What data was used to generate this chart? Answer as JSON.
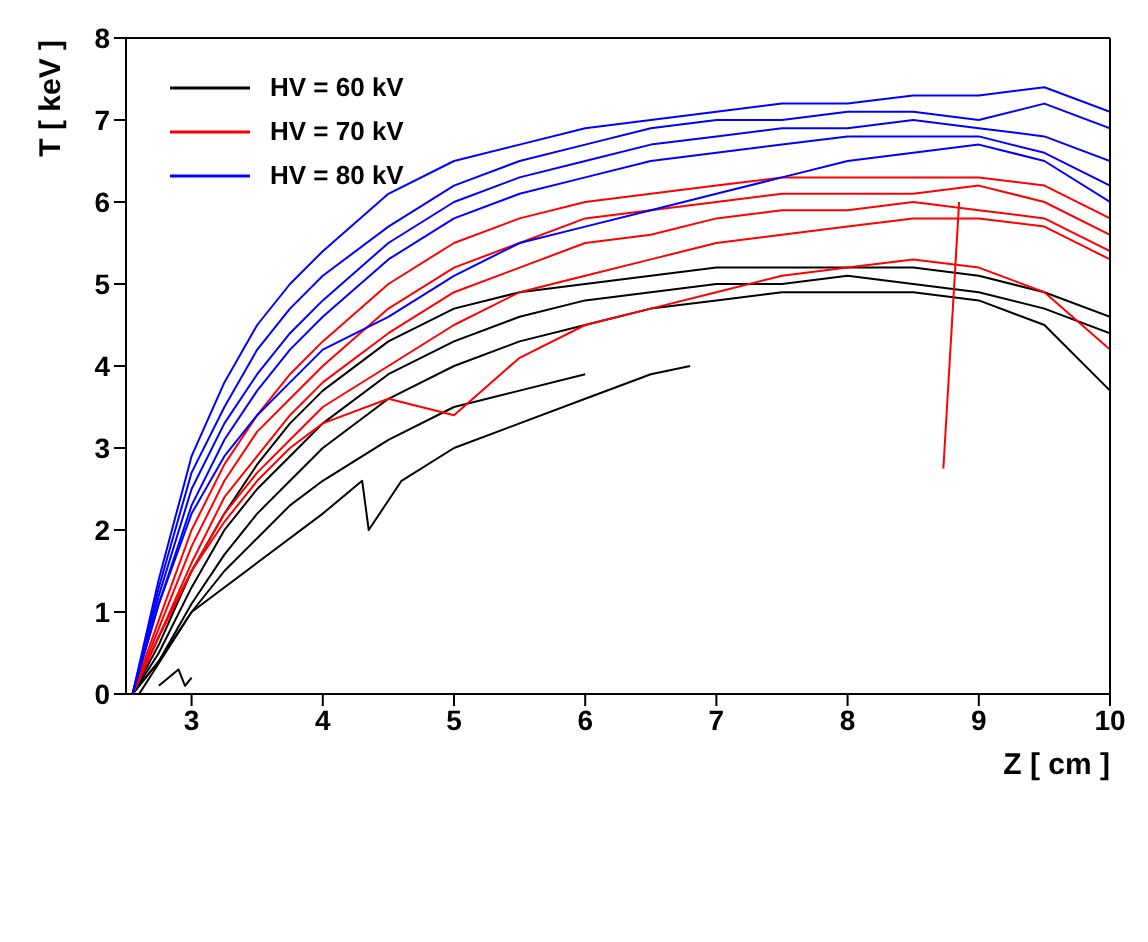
{
  "chart_data": {
    "type": "line",
    "xlabel": "Z  [ cm ]",
    "ylabel": "T  [ keV ]",
    "xlim": [
      2.5,
      10
    ],
    "xticks": [
      3,
      4,
      5,
      6,
      7,
      8,
      9,
      10
    ],
    "ylim": [
      0,
      8
    ],
    "yticks": [
      0,
      1,
      2,
      3,
      4,
      5,
      6,
      7,
      8
    ],
    "grid": false,
    "legend": "top left",
    "marker": "none",
    "line_style": "solid",
    "x": [
      2.55,
      2.75,
      3,
      3.25,
      3.5,
      3.75,
      4,
      4.5,
      5,
      5.5,
      6,
      6.5,
      7,
      7.5,
      8,
      8.5,
      9,
      9.5,
      10
    ],
    "series": [
      {
        "name": "HV = 60 kV",
        "color": "#000000",
        "values": [
          0,
          0.6,
          1.5,
          2.2,
          2.8,
          3.3,
          3.7,
          4.3,
          4.7,
          4.9,
          5.0,
          5.1,
          5.2,
          5.2,
          5.2,
          5.2,
          5.1,
          4.9,
          4.6
        ]
      },
      {
        "color": "#000000",
        "values": [
          0,
          0.5,
          1.3,
          2.0,
          2.5,
          2.9,
          3.3,
          3.9,
          4.3,
          4.6,
          4.8,
          4.9,
          5.0,
          5.0,
          5.1,
          5.0,
          4.9,
          4.7,
          4.4
        ]
      },
      {
        "color": "#000000",
        "values": [
          0,
          0.4,
          1.1,
          1.7,
          2.2,
          2.6,
          3.0,
          3.6,
          4.0,
          4.3,
          4.5,
          4.7,
          4.8,
          4.9,
          4.9,
          4.9,
          4.8,
          4.5,
          3.7
        ]
      },
      {
        "color": "#000000",
        "values": [
          0,
          0.4,
          1.0,
          1.5,
          1.9,
          2.3,
          2.6,
          3.1,
          3.5,
          3.7,
          3.9,
          null,
          null,
          null,
          null,
          null,
          null,
          null,
          null
        ]
      },
      {
        "color": "#000000",
        "x": [
          2.6,
          2.8,
          3,
          3.5,
          4,
          4.3,
          4.35,
          4.6,
          5,
          5.5,
          6,
          6.5,
          6.8
        ],
        "values": [
          0,
          0.5,
          1.0,
          1.6,
          2.2,
          2.6,
          2.0,
          2.6,
          3.0,
          3.3,
          3.6,
          3.9,
          4.0
        ]
      },
      {
        "color": "#000000",
        "x": [
          2.75,
          2.9,
          2.95,
          3.0
        ],
        "values": [
          0.1,
          0.3,
          0.1,
          0.2
        ]
      },
      {
        "name": "HV = 70 kV",
        "color": "#ff0000",
        "values": [
          0,
          0.9,
          2.0,
          2.8,
          3.4,
          3.9,
          4.3,
          5.0,
          5.5,
          5.8,
          6.0,
          6.1,
          6.2,
          6.3,
          6.3,
          6.3,
          6.3,
          6.2,
          5.8
        ]
      },
      {
        "color": "#ff0000",
        "values": [
          0,
          0.8,
          1.8,
          2.6,
          3.2,
          3.6,
          4.0,
          4.7,
          5.2,
          5.5,
          5.8,
          5.9,
          6.0,
          6.1,
          6.1,
          6.1,
          6.2,
          6.0,
          5.6
        ]
      },
      {
        "color": "#ff0000",
        "values": [
          0,
          0.7,
          1.6,
          2.4,
          2.9,
          3.4,
          3.8,
          4.4,
          4.9,
          5.2,
          5.5,
          5.6,
          5.8,
          5.9,
          5.9,
          6.0,
          5.9,
          5.8,
          5.4
        ]
      },
      {
        "color": "#ff0000",
        "values": [
          0,
          0.7,
          1.5,
          2.2,
          2.7,
          3.1,
          3.5,
          4.0,
          4.5,
          4.9,
          5.1,
          5.3,
          5.5,
          5.6,
          5.7,
          5.8,
          5.8,
          5.7,
          5.3
        ]
      },
      {
        "color": "#ff0000",
        "values": [
          0,
          0.7,
          1.5,
          2.1,
          2.6,
          3.0,
          3.3,
          3.6,
          3.4,
          4.1,
          4.5,
          4.7,
          4.9,
          5.1,
          5.2,
          5.3,
          5.2,
          4.9,
          4.2
        ]
      },
      {
        "color": "#ff0000",
        "x": [
          8.73,
          8.85
        ],
        "values": [
          2.75,
          6.0
        ]
      },
      {
        "name": "HV = 80 kV",
        "color": "#0000ff",
        "values": [
          0,
          1.4,
          2.9,
          3.8,
          4.5,
          5.0,
          5.4,
          6.1,
          6.5,
          6.7,
          6.9,
          7.0,
          7.1,
          7.2,
          7.2,
          7.3,
          7.3,
          7.4,
          7.1
        ]
      },
      {
        "color": "#0000ff",
        "values": [
          0,
          1.3,
          2.7,
          3.5,
          4.2,
          4.7,
          5.1,
          5.7,
          6.2,
          6.5,
          6.7,
          6.9,
          7.0,
          7.0,
          7.1,
          7.1,
          7.0,
          7.2,
          6.9
        ]
      },
      {
        "color": "#0000ff",
        "values": [
          0,
          1.2,
          2.5,
          3.3,
          3.9,
          4.4,
          4.8,
          5.5,
          6.0,
          6.3,
          6.5,
          6.7,
          6.8,
          6.9,
          6.9,
          7.0,
          6.9,
          6.8,
          6.5
        ]
      },
      {
        "color": "#0000ff",
        "values": [
          0,
          1.1,
          2.3,
          3.1,
          3.7,
          4.2,
          4.6,
          5.3,
          5.8,
          6.1,
          6.3,
          6.5,
          6.6,
          6.7,
          6.8,
          6.8,
          6.8,
          6.6,
          6.2
        ]
      },
      {
        "color": "#0000ff",
        "values": [
          0,
          1.1,
          2.2,
          2.9,
          3.4,
          3.8,
          4.2,
          4.6,
          5.1,
          5.5,
          5.7,
          5.9,
          6.1,
          6.3,
          6.5,
          6.6,
          6.7,
          6.5,
          6.0
        ]
      }
    ]
  }
}
